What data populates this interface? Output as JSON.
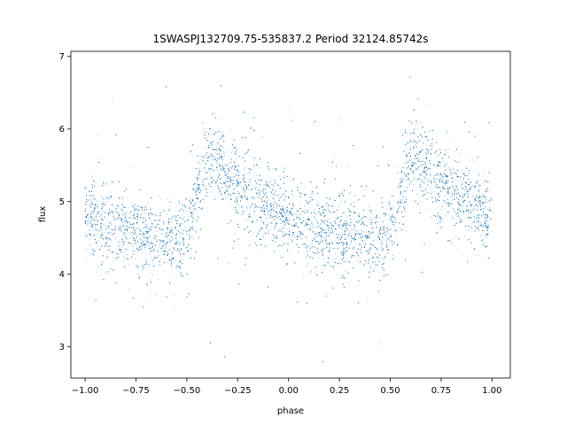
{
  "chart_data": {
    "type": "scatter",
    "title": "1SWASPJ132709.75-535837.2 Period 32124.85742s",
    "xlabel": "phase",
    "ylabel": "flux",
    "xlim": [
      -1.07,
      1.09
    ],
    "ylim": [
      2.57,
      7.07
    ],
    "x_ticks": [
      -1.0,
      -0.75,
      -0.5,
      -0.25,
      0.0,
      0.25,
      0.5,
      0.75,
      1.0
    ],
    "x_tick_labels": [
      "−1.00",
      "−0.75",
      "−0.50",
      "−0.25",
      "0.00",
      "0.25",
      "0.50",
      "0.75",
      "1.00"
    ],
    "y_ticks": [
      3,
      4,
      5,
      6,
      7
    ],
    "y_tick_labels": [
      "3",
      "4",
      "5",
      "6",
      "7"
    ],
    "marker_color": "#1f77b4",
    "grid": false,
    "series": [
      {
        "phase_range": [
          -1.0,
          1.0
        ],
        "period_in_phase": 1.0,
        "mean_curve": {
          "phase": [
            0.0,
            0.1,
            0.2,
            0.3,
            0.4,
            0.48,
            0.52,
            0.56,
            0.6,
            0.62,
            0.65,
            0.7,
            0.8,
            0.9,
            1.0
          ],
          "flux": [
            4.78,
            4.68,
            4.6,
            4.53,
            4.5,
            4.5,
            4.75,
            5.2,
            5.62,
            5.62,
            5.52,
            5.38,
            5.15,
            4.95,
            4.78
          ]
        },
        "scatter_sigma": 0.25,
        "outlier_range": [
          2.75,
          6.85
        ]
      }
    ]
  }
}
